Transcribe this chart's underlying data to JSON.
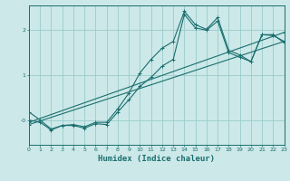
{
  "xlabel": "Humidex (Indice chaleur)",
  "bg_color": "#cce8e8",
  "grid_color": "#99cccc",
  "line_color": "#1a6e6e",
  "xlim": [
    0,
    23
  ],
  "ylim": [
    -0.55,
    2.55
  ],
  "yticks": [
    0,
    1,
    2
  ],
  "ytick_labels": [
    "-0",
    "1",
    "2"
  ],
  "xticks": [
    0,
    1,
    2,
    3,
    4,
    5,
    6,
    7,
    8,
    9,
    10,
    11,
    12,
    13,
    14,
    15,
    16,
    17,
    18,
    19,
    20,
    21,
    22,
    23
  ],
  "series": [
    {
      "x": [
        0,
        1,
        2,
        3,
        4,
        5,
        6,
        7,
        8,
        9,
        10,
        11,
        12,
        13,
        14,
        15,
        16,
        17,
        18,
        19,
        20,
        21,
        22,
        23
      ],
      "y": [
        0.0,
        -0.05,
        -0.22,
        -0.12,
        -0.12,
        -0.18,
        -0.08,
        -0.1,
        0.18,
        0.45,
        0.75,
        0.95,
        1.2,
        1.35,
        2.35,
        2.05,
        2.0,
        2.2,
        1.5,
        1.4,
        1.3,
        1.9,
        1.9,
        1.72
      ],
      "marker": "+"
    },
    {
      "x": [
        0,
        23
      ],
      "y": [
        -0.05,
        1.95
      ],
      "marker": "+"
    },
    {
      "x": [
        0,
        23
      ],
      "y": [
        -0.1,
        1.75
      ],
      "marker": "+"
    },
    {
      "x": [
        0,
        1,
        2,
        3,
        4,
        5,
        6,
        7,
        8,
        9,
        10,
        11,
        12,
        13,
        14,
        15,
        16,
        17,
        18,
        19,
        20,
        21,
        22,
        23
      ],
      "y": [
        0.18,
        0.0,
        -0.2,
        -0.12,
        -0.1,
        -0.15,
        -0.05,
        -0.05,
        0.25,
        0.6,
        1.05,
        1.35,
        1.6,
        1.75,
        2.42,
        2.12,
        2.02,
        2.28,
        1.55,
        1.45,
        1.3,
        1.9,
        1.88,
        1.75
      ],
      "marker": "+"
    }
  ]
}
